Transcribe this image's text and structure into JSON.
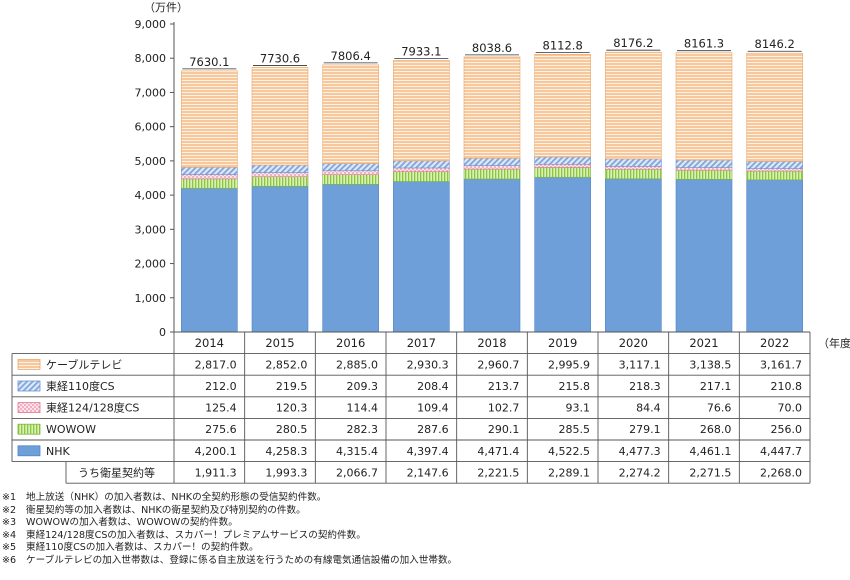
{
  "chart_data": {
    "type": "bar",
    "stacked": true,
    "y_unit": "（万件）",
    "x_unit": "（年度）",
    "ylim": [
      0,
      9000
    ],
    "yticks": [
      "0",
      "1,000",
      "2,000",
      "3,000",
      "4,000",
      "5,000",
      "6,000",
      "7,000",
      "8,000",
      "9,000"
    ],
    "categories": [
      "2014",
      "2015",
      "2016",
      "2017",
      "2018",
      "2019",
      "2020",
      "2021",
      "2022"
    ],
    "totals": [
      "7630.1",
      "7730.6",
      "7806.4",
      "7933.1",
      "8038.6",
      "8112.8",
      "8176.2",
      "8161.3",
      "8146.2"
    ],
    "series": [
      {
        "name": "NHK",
        "color": "#6f9fd8",
        "values": [
          4200.1,
          4258.3,
          4315.4,
          4397.4,
          4471.4,
          4522.5,
          4477.3,
          4461.1,
          4447.7
        ],
        "labels": [
          "4,200.1",
          "4,258.3",
          "4,315.4",
          "4,397.4",
          "4,471.4",
          "4,522.5",
          "4,477.3",
          "4,461.1",
          "4,447.7"
        ]
      },
      {
        "name": "WOWOW",
        "color": "#b6e07a",
        "values": [
          275.6,
          280.5,
          282.3,
          287.6,
          290.1,
          285.5,
          279.1,
          268.0,
          256.0
        ],
        "labels": [
          "275.6",
          "280.5",
          "282.3",
          "287.6",
          "290.1",
          "285.5",
          "279.1",
          "268.0",
          "256.0"
        ]
      },
      {
        "name": "東経124/128度CS",
        "color": "#f6c6d2",
        "values": [
          125.4,
          120.3,
          114.4,
          109.4,
          102.7,
          93.1,
          84.4,
          76.6,
          70.0
        ],
        "labels": [
          "125.4",
          "120.3",
          "114.4",
          "109.4",
          "102.7",
          "93.1",
          "84.4",
          "76.6",
          "70.0"
        ]
      },
      {
        "name": "東経110度CS",
        "color": "#9dbbe6",
        "values": [
          212.0,
          219.5,
          209.3,
          208.4,
          213.7,
          215.8,
          218.3,
          217.1,
          210.8
        ],
        "labels": [
          "212.0",
          "219.5",
          "209.3",
          "208.4",
          "213.7",
          "215.8",
          "218.3",
          "217.1",
          "210.8"
        ]
      },
      {
        "name": "ケーブルテレビ",
        "color": "#f8c79a",
        "values": [
          2817.0,
          2852.0,
          2885.0,
          2930.3,
          2960.7,
          2995.9,
          3117.1,
          3138.5,
          3161.7
        ],
        "labels": [
          "2,817.0",
          "2,852.0",
          "2,885.0",
          "2,930.3",
          "2,960.7",
          "2,995.9",
          "3,117.1",
          "3,138.5",
          "3,161.7"
        ]
      }
    ],
    "sub_row": {
      "name": "うち衛星契約等",
      "values": [
        1911.3,
        1993.3,
        2066.7,
        2147.6,
        2221.5,
        2289.1,
        2274.2,
        2271.5,
        2268.0
      ],
      "labels": [
        "1,911.3",
        "1,993.3",
        "2,066.7",
        "2,147.6",
        "2,221.5",
        "2,289.1",
        "2,274.2",
        "2,271.5",
        "2,268.0"
      ]
    },
    "table_row_order": [
      4,
      3,
      2,
      1,
      0
    ],
    "grid": false,
    "legend": "data-table"
  },
  "notes": [
    {
      "mark": "※1",
      "text": "地上放送（NHK）の加入者数は、NHKの全契約形態の受信契約件数。"
    },
    {
      "mark": "※2",
      "text": "衛星契約等の加入者数は、NHKの衛星契約及び特別契約の件数。"
    },
    {
      "mark": "※3",
      "text": "WOWOWの加入者数は、WOWOWの契約件数。"
    },
    {
      "mark": "※4",
      "text": "東経124/128度CSの加入者数は、スカパー！プレミアムサービスの契約件数。"
    },
    {
      "mark": "※5",
      "text": "東経110度CSの加入者数は、スカパー！の契約件数。"
    },
    {
      "mark": "※6",
      "text": "ケーブルテレビの加入世帯数は、登録に係る自主放送を行うための有線電気通信設備の加入世帯数。"
    }
  ]
}
